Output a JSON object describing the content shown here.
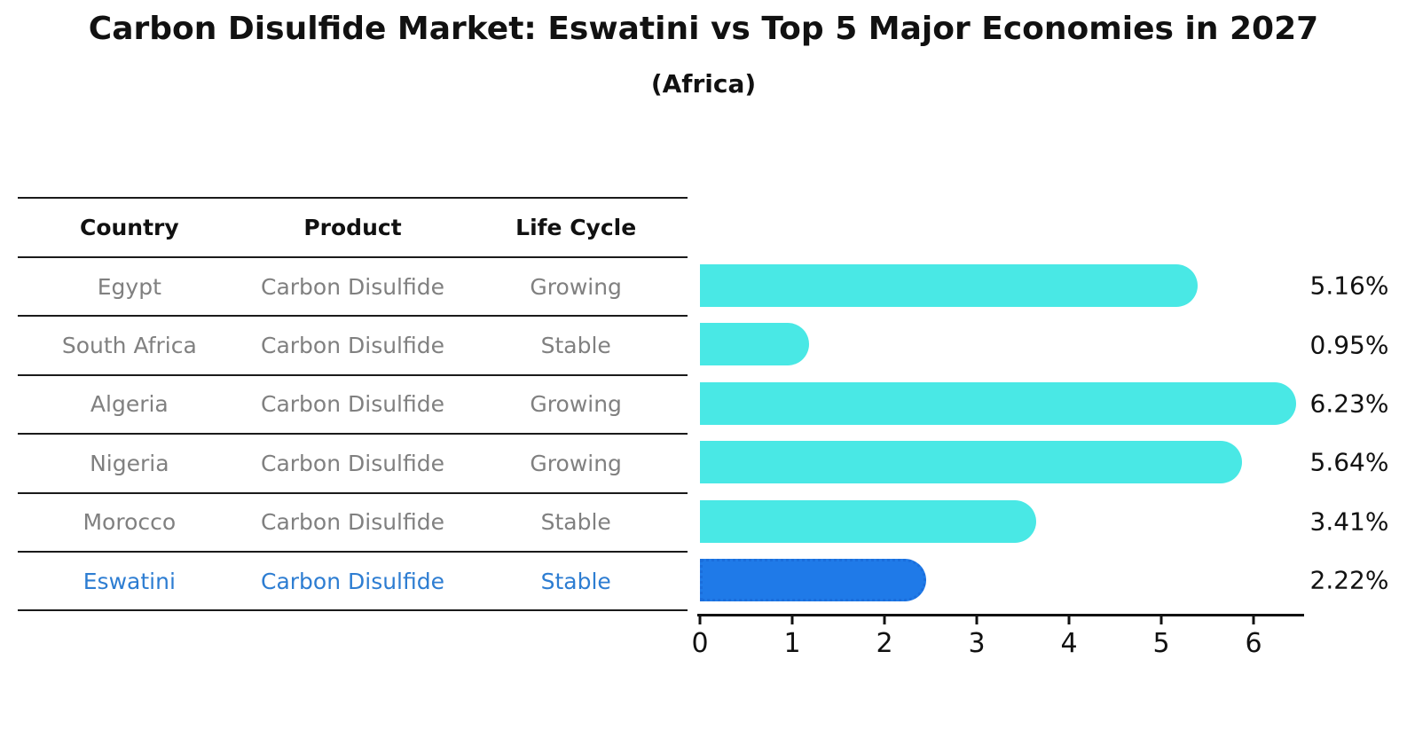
{
  "title": "Carbon Disulfide Market: Eswatini vs Top 5 Major Economies in 2027",
  "subtitle": "(Africa)",
  "table": {
    "headers": [
      "Country",
      "Product",
      "Life Cycle"
    ],
    "rows": [
      {
        "country": "Egypt",
        "product": "Carbon Disulfide",
        "life_cycle": "Growing",
        "highlight": false
      },
      {
        "country": "South Africa",
        "product": "Carbon Disulfide",
        "life_cycle": "Stable",
        "highlight": false
      },
      {
        "country": "Algeria",
        "product": "Carbon Disulfide",
        "life_cycle": "Growing",
        "highlight": false
      },
      {
        "country": "Nigeria",
        "product": "Carbon Disulfide",
        "life_cycle": "Growing",
        "highlight": false
      },
      {
        "country": "Morocco",
        "product": "Carbon Disulfide",
        "life_cycle": "Stable",
        "highlight": false
      },
      {
        "country": "Eswatini",
        "product": "Carbon Disulfide",
        "life_cycle": "Stable",
        "highlight": true
      }
    ]
  },
  "chart_data": {
    "type": "bar",
    "orientation": "horizontal",
    "categories": [
      "Egypt",
      "South Africa",
      "Algeria",
      "Nigeria",
      "Morocco",
      "Eswatini"
    ],
    "values": [
      5.16,
      0.95,
      6.23,
      5.64,
      3.41,
      2.22
    ],
    "value_labels": [
      "5.16%",
      "0.95%",
      "6.23%",
      "5.64%",
      "3.41%",
      "2.22%"
    ],
    "x_ticks": [
      0,
      1,
      2,
      3,
      4,
      5,
      6
    ],
    "xlim": [
      0,
      6.55
    ],
    "grid": false,
    "legend": "none",
    "bar_color": "#49E8E5",
    "highlight_index": 5,
    "highlight_bar_color": "#1F7AE8",
    "highlight_border_color": "#1A6EDC",
    "highlight_border_style": "dotted"
  },
  "colors": {
    "text": "#111111",
    "muted_text": "#808080",
    "highlight_text": "#2D7DD2",
    "line": "#1a1a1a",
    "background": "#ffffff"
  }
}
